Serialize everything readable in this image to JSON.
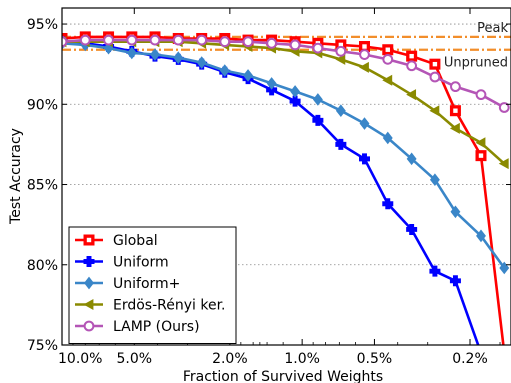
{
  "chart_data": {
    "type": "line",
    "title": "",
    "xlabel": "Fraction of Survived Weights",
    "ylabel": "Test Accuracy",
    "x_scale": "log-reversed",
    "xlim": [
      10.0,
      0.135
    ],
    "ylim": [
      75,
      96
    ],
    "x_ticks": [
      10.0,
      5.0,
      2.0,
      1.0,
      0.5,
      0.2
    ],
    "x_tick_labels": [
      "10.0%",
      "5.0%",
      "2.0%",
      "1.0%",
      "0.5%",
      "0.2%"
    ],
    "y_ticks": [
      75,
      80,
      85,
      90,
      95
    ],
    "y_tick_labels": [
      "75%",
      "80%",
      "85%",
      "90%",
      "95%"
    ],
    "grid": "horizontal dotted",
    "legend": "bottom-left",
    "reference_lines": [
      {
        "name": "Peak",
        "y": 94.2,
        "color": "#f28e2b"
      },
      {
        "name": "Unpruned",
        "y": 93.4,
        "color": "#f28e2b"
      }
    ],
    "x": [
      10.0,
      8.0,
      6.4,
      5.12,
      4.1,
      3.28,
      2.62,
      2.1,
      1.68,
      1.34,
      1.07,
      0.86,
      0.69,
      0.55,
      0.44,
      0.35,
      0.28,
      0.23,
      0.18,
      0.144
    ],
    "series": [
      {
        "name": "Global",
        "color": "#ff0000",
        "marker": "square",
        "values": [
          94.1,
          94.2,
          94.2,
          94.2,
          94.2,
          94.1,
          94.1,
          94.1,
          94.0,
          94.0,
          93.9,
          93.8,
          93.7,
          93.6,
          93.4,
          93.0,
          92.5,
          89.6,
          86.8,
          74.5
        ]
      },
      {
        "name": "Uniform",
        "color": "#0000ff",
        "marker": "plus",
        "values": [
          93.9,
          93.8,
          93.6,
          93.3,
          93.0,
          92.8,
          92.5,
          92.0,
          91.6,
          90.9,
          90.2,
          89.0,
          87.5,
          86.6,
          83.8,
          82.2,
          79.6,
          79.0,
          74.5,
          null
        ]
      },
      {
        "name": "Uniform+",
        "color": "#3a86c8",
        "marker": "diamond",
        "values": [
          93.8,
          93.7,
          93.5,
          93.2,
          93.1,
          92.9,
          92.6,
          92.1,
          91.8,
          91.3,
          90.8,
          90.3,
          89.6,
          88.8,
          87.9,
          86.6,
          85.3,
          83.3,
          81.8,
          79.8
        ]
      },
      {
        "name": "Erdös-Rényi ker.",
        "color": "#8a8a00",
        "marker": "triangle-left",
        "values": [
          93.9,
          93.9,
          93.9,
          93.9,
          93.9,
          93.9,
          93.8,
          93.7,
          93.6,
          93.5,
          93.3,
          93.2,
          92.8,
          92.3,
          91.5,
          90.6,
          89.6,
          88.5,
          87.6,
          86.3
        ]
      },
      {
        "name": "LAMP (Ours)",
        "color": "#b455b6",
        "marker": "circle",
        "values": [
          93.9,
          94.0,
          94.0,
          94.0,
          94.0,
          94.0,
          94.0,
          93.9,
          93.9,
          93.8,
          93.7,
          93.5,
          93.3,
          93.1,
          92.8,
          92.4,
          91.7,
          91.1,
          90.6,
          89.8
        ]
      }
    ]
  }
}
